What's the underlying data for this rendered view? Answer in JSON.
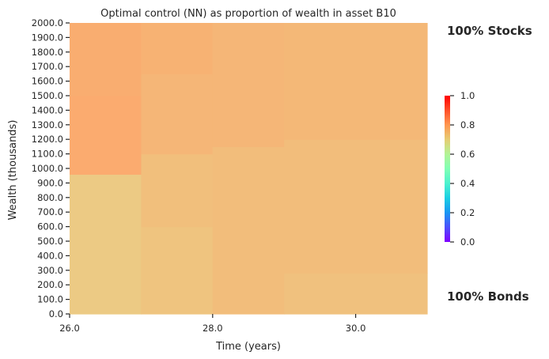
{
  "chart_data": {
    "type": "heatmap",
    "title": "Optimal control (NN) as proportion of wealth in asset B10",
    "xlabel": "Time (years)",
    "ylabel": "Wealth (thousands)",
    "x_ticks": [
      "26.0",
      "28.0",
      "30.0"
    ],
    "x_range": [
      26.0,
      31.0
    ],
    "y_ticks": [
      "0.0",
      "100.0",
      "200.0",
      "300.0",
      "400.0",
      "500.0",
      "600.0",
      "700.0",
      "800.0",
      "900.0",
      "1000.0",
      "1100.0",
      "1200.0",
      "1300.0",
      "1400.0",
      "1500.0",
      "1600.0",
      "1700.0",
      "1800.0",
      "1900.0",
      "2000.0"
    ],
    "y_range": [
      0,
      2000
    ],
    "colormap": "rainbow",
    "color_range": [
      0.0,
      1.0
    ],
    "colorbar_ticks": [
      "0.0",
      "0.2",
      "0.4",
      "0.6",
      "0.8",
      "1.0"
    ],
    "annotations": {
      "top": "100% Stocks",
      "bottom": "100% Bonds"
    },
    "regions": [
      {
        "x": [
          26,
          27
        ],
        "y": [
          0,
          960
        ],
        "value": 0.72
      },
      {
        "x": [
          26,
          27
        ],
        "y": [
          960,
          1500
        ],
        "value": 0.79
      },
      {
        "x": [
          26,
          27
        ],
        "y": [
          1500,
          2000
        ],
        "value": 0.785
      },
      {
        "x": [
          27,
          28
        ],
        "y": [
          0,
          600
        ],
        "value": 0.735
      },
      {
        "x": [
          27,
          28
        ],
        "y": [
          600,
          1100
        ],
        "value": 0.745
      },
      {
        "x": [
          27,
          28
        ],
        "y": [
          1100,
          1650
        ],
        "value": 0.765
      },
      {
        "x": [
          27,
          28
        ],
        "y": [
          1650,
          2000
        ],
        "value": 0.775
      },
      {
        "x": [
          28,
          29
        ],
        "y": [
          0,
          1150
        ],
        "value": 0.75
      },
      {
        "x": [
          28,
          29
        ],
        "y": [
          1150,
          2000
        ],
        "value": 0.765
      },
      {
        "x": [
          29,
          31
        ],
        "y": [
          0,
          280
        ],
        "value": 0.74
      },
      {
        "x": [
          29,
          31
        ],
        "y": [
          280,
          1200
        ],
        "value": 0.75
      },
      {
        "x": [
          29,
          31
        ],
        "y": [
          1200,
          2000
        ],
        "value": 0.76
      }
    ]
  }
}
